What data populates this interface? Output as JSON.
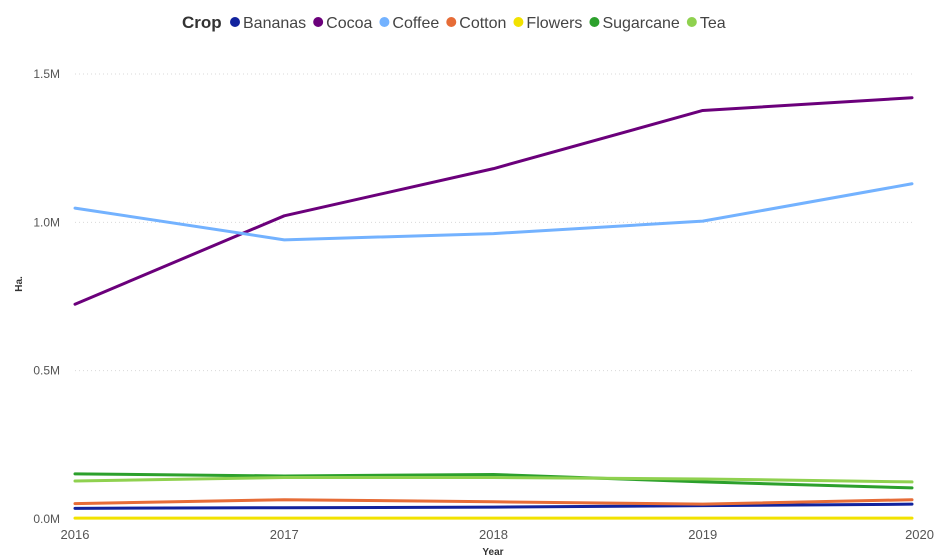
{
  "chart_data": {
    "type": "line",
    "legend": {
      "title": "Crop",
      "placement": "top"
    },
    "xlabel": "Year",
    "ylabel": "Ha.",
    "x": [
      "2016",
      "2017",
      "2018",
      "2019",
      "2020"
    ],
    "yticks": [
      {
        "value": 0,
        "label": "0.0M"
      },
      {
        "value": 500000,
        "label": "0.5M"
      },
      {
        "value": 1000000,
        "label": "1.0M"
      },
      {
        "value": 1500000,
        "label": "1.5M"
      }
    ],
    "ylim": [
      0,
      1600000
    ],
    "grid": true,
    "series": [
      {
        "name": "Bananas",
        "color": "#12239E",
        "values": [
          36000,
          38000,
          40000,
          45000,
          50000
        ]
      },
      {
        "name": "Cocoa",
        "color": "#6B007B",
        "values": [
          724000,
          1022000,
          1181000,
          1377000,
          1420000
        ]
      },
      {
        "name": "Coffee",
        "color": "#73B2FF",
        "values": [
          1048000,
          941000,
          962000,
          1004000,
          1130000
        ]
      },
      {
        "name": "Cotton",
        "color": "#E66C37",
        "values": [
          52000,
          65000,
          58000,
          50000,
          65000
        ]
      },
      {
        "name": "Flowers",
        "color": "#F2E200",
        "values": [
          3000,
          3000,
          3000,
          3000,
          3000
        ]
      },
      {
        "name": "Sugarcane",
        "color": "#2CA02C",
        "values": [
          152000,
          145000,
          150000,
          125000,
          105000
        ]
      },
      {
        "name": "Tea",
        "color": "#8FD14F",
        "values": [
          128000,
          140000,
          140000,
          135000,
          125000
        ]
      }
    ]
  }
}
